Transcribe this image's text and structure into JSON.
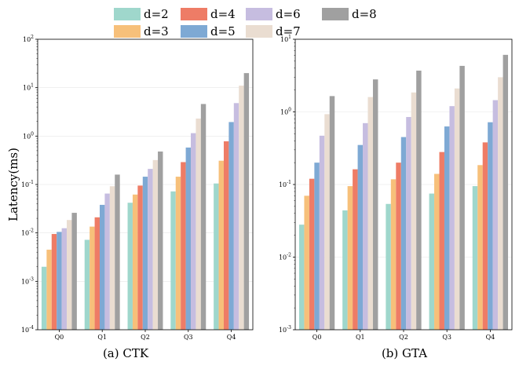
{
  "legend": {
    "entries": [
      {
        "label": "d=2",
        "color": "#9fd7cc"
      },
      {
        "label": "d=3",
        "color": "#f7c07a"
      },
      {
        "label": "d=4",
        "color": "#ee7c66"
      },
      {
        "label": "d=5",
        "color": "#7ea9d4"
      },
      {
        "label": "d=6",
        "color": "#c6bde0"
      },
      {
        "label": "d=7",
        "color": "#eaddd1"
      },
      {
        "label": "d=8",
        "color": "#a0a0a0"
      }
    ]
  },
  "chart_data": [
    {
      "type": "bar",
      "title": "(a)  CTK",
      "xlabel": "",
      "ylabel": "Latency(ms)",
      "yscale": "log",
      "ylim": [
        0.0001,
        100
      ],
      "yticks": [
        {
          "value": 0.0001,
          "base": "10",
          "exp": "-4"
        },
        {
          "value": 0.001,
          "base": "10",
          "exp": "-3"
        },
        {
          "value": 0.01,
          "base": "10",
          "exp": "-2"
        },
        {
          "value": 0.1,
          "base": "10",
          "exp": "-1"
        },
        {
          "value": 1,
          "base": "10",
          "exp": "0"
        },
        {
          "value": 10,
          "base": "10",
          "exp": "1"
        },
        {
          "value": 100,
          "base": "10",
          "exp": "2"
        }
      ],
      "categories": [
        "Q0",
        "Q1",
        "Q2",
        "Q3",
        "Q4"
      ],
      "series": [
        {
          "name": "d=2",
          "values": [
            0.002,
            0.0072,
            0.042,
            0.072,
            0.105
          ]
        },
        {
          "name": "d=3",
          "values": [
            0.0045,
            0.0135,
            0.062,
            0.145,
            0.31
          ]
        },
        {
          "name": "d=4",
          "values": [
            0.0095,
            0.021,
            0.095,
            0.29,
            0.78
          ]
        },
        {
          "name": "d=5",
          "values": [
            0.0105,
            0.038,
            0.145,
            0.58,
            1.95
          ]
        },
        {
          "name": "d=6",
          "values": [
            0.0125,
            0.065,
            0.21,
            1.15,
            4.8
          ]
        },
        {
          "name": "d=7",
          "values": [
            0.0185,
            0.092,
            0.32,
            2.3,
            11.0
          ]
        },
        {
          "name": "d=8",
          "values": [
            0.026,
            0.16,
            0.48,
            4.6,
            20.0
          ]
        }
      ]
    },
    {
      "type": "bar",
      "title": "(b)  GTA",
      "xlabel": "",
      "ylabel": "",
      "yscale": "log",
      "ylim": [
        0.001,
        10
      ],
      "yticks": [
        {
          "value": 0.001,
          "base": "10",
          "exp": "-3"
        },
        {
          "value": 0.01,
          "base": "10",
          "exp": "-2"
        },
        {
          "value": 0.1,
          "base": "10",
          "exp": "-1"
        },
        {
          "value": 1,
          "base": "10",
          "exp": "0"
        },
        {
          "value": 10,
          "base": "10",
          "exp": "1"
        }
      ],
      "categories": [
        "Q0",
        "Q1",
        "Q2",
        "Q3",
        "Q4"
      ],
      "series": [
        {
          "name": "d=2",
          "values": [
            0.028,
            0.044,
            0.054,
            0.075,
            0.095
          ]
        },
        {
          "name": "d=3",
          "values": [
            0.07,
            0.095,
            0.118,
            0.14,
            0.185
          ]
        },
        {
          "name": "d=4",
          "values": [
            0.12,
            0.162,
            0.2,
            0.28,
            0.38
          ]
        },
        {
          "name": "d=5",
          "values": [
            0.2,
            0.35,
            0.45,
            0.63,
            0.72
          ]
        },
        {
          "name": "d=6",
          "values": [
            0.47,
            0.7,
            0.85,
            1.2,
            1.45
          ]
        },
        {
          "name": "d=7",
          "values": [
            0.93,
            1.6,
            1.85,
            2.1,
            3.0
          ]
        },
        {
          "name": "d=8",
          "values": [
            1.65,
            2.8,
            3.7,
            4.3,
            6.1
          ]
        }
      ]
    }
  ]
}
